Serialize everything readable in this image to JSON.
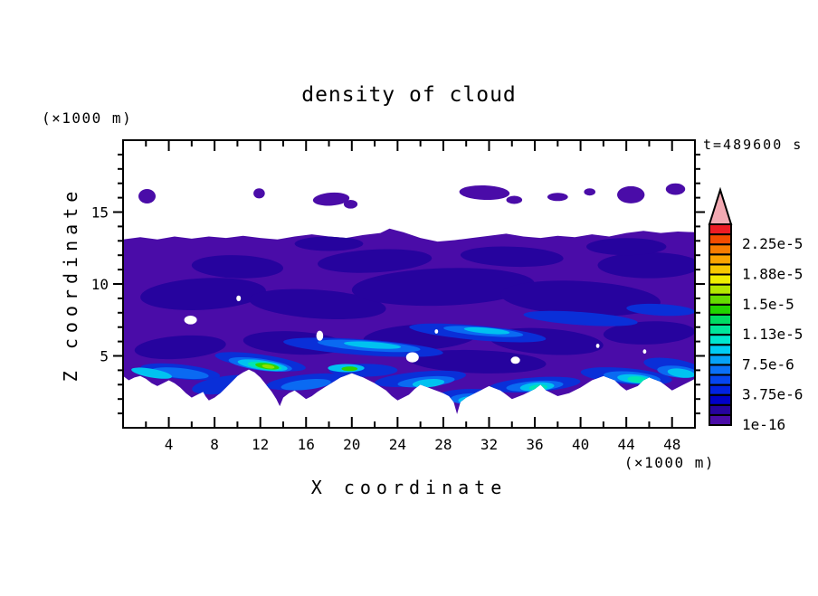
{
  "chart_data": {
    "type": "filled-contour",
    "title": "density of cloud",
    "annotation": "t=489600 s",
    "xlabel": "X coordinate",
    "ylabel": "Z coordinate",
    "x_unit": "(×1000 m)",
    "y_unit": "(×1000 m)",
    "x_range": [
      0,
      50
    ],
    "y_range": [
      0,
      20
    ],
    "x_major_ticks": [
      4,
      8,
      12,
      16,
      20,
      24,
      28,
      32,
      36,
      40,
      44,
      48
    ],
    "x_minor_tick_step": 2,
    "y_major_ticks": [
      5,
      10,
      15
    ],
    "y_minor_tick_step": 1,
    "grid": false,
    "legend_position": "colorbar-right",
    "colorbar": {
      "labels_top_to_bottom": [
        "2.25e-5",
        "1.88e-5",
        "1.5e-5",
        "1.13e-5",
        "7.5e-6",
        "3.75e-6",
        "1e-16"
      ],
      "label_every_n_cells": 3,
      "n_cells": 20,
      "colors_bottom_to_top": [
        "#4a0ca8",
        "#26039e",
        "#0000c8",
        "#0122e2",
        "#0546f0",
        "#0a70f8",
        "#06a2f8",
        "#00ccf4",
        "#00e6cf",
        "#00e69b",
        "#00dc64",
        "#22d400",
        "#66dc00",
        "#b4e800",
        "#f0ee00",
        "#f8c800",
        "#fca400",
        "#f87c00",
        "#f44c00",
        "#ee1c24"
      ],
      "overflow_triangle_color": "#f2a9b2"
    },
    "field": {
      "base_color": "#4a0ca8",
      "main_cloud_polygon": [
        [
          0,
          13.1
        ],
        [
          1.5,
          13.25
        ],
        [
          3,
          13.1
        ],
        [
          4.5,
          13.3
        ],
        [
          6,
          13.15
        ],
        [
          7.5,
          13.3
        ],
        [
          9,
          13.2
        ],
        [
          10.5,
          13.35
        ],
        [
          12,
          13.2
        ],
        [
          13.5,
          13.1
        ],
        [
          15,
          13.3
        ],
        [
          16.5,
          13.45
        ],
        [
          18,
          13.3
        ],
        [
          19.5,
          13.2
        ],
        [
          21,
          13.4
        ],
        [
          22.5,
          13.55
        ],
        [
          23.3,
          13.85
        ],
        [
          24.5,
          13.6
        ],
        [
          26,
          13.2
        ],
        [
          27.5,
          12.95
        ],
        [
          29,
          13.05
        ],
        [
          30.5,
          13.2
        ],
        [
          32,
          13.35
        ],
        [
          33.5,
          13.5
        ],
        [
          35,
          13.3
        ],
        [
          36.5,
          13.2
        ],
        [
          38,
          13.35
        ],
        [
          39.5,
          13.25
        ],
        [
          41,
          13.45
        ],
        [
          42.5,
          13.3
        ],
        [
          44,
          13.55
        ],
        [
          45.5,
          13.7
        ],
        [
          47,
          13.55
        ],
        [
          48.5,
          13.65
        ],
        [
          50,
          13.6
        ],
        [
          50,
          3.4
        ],
        [
          49,
          3.0
        ],
        [
          48,
          2.6
        ],
        [
          47,
          3.2
        ],
        [
          46,
          3.5
        ],
        [
          45.5,
          3.3
        ],
        [
          45,
          2.9
        ],
        [
          44,
          2.6
        ],
        [
          43.5,
          2.9
        ],
        [
          43,
          3.3
        ],
        [
          42,
          3.6
        ],
        [
          41,
          3.3
        ],
        [
          40,
          2.8
        ],
        [
          39,
          2.4
        ],
        [
          38,
          2.2
        ],
        [
          37,
          2.6
        ],
        [
          36.5,
          3.0
        ],
        [
          36,
          2.7
        ],
        [
          35,
          2.3
        ],
        [
          34,
          2.0
        ],
        [
          33.5,
          2.3
        ],
        [
          33,
          2.6
        ],
        [
          32,
          2.9
        ],
        [
          31,
          2.5
        ],
        [
          30,
          2.1
        ],
        [
          29.5,
          1.8
        ],
        [
          29.2,
          0.95
        ],
        [
          28.9,
          1.8
        ],
        [
          28.5,
          2.2
        ],
        [
          28,
          2.4
        ],
        [
          27,
          2.7
        ],
        [
          26,
          3.0
        ],
        [
          25.5,
          2.7
        ],
        [
          25,
          2.3
        ],
        [
          24,
          1.9
        ],
        [
          23.5,
          2.2
        ],
        [
          23,
          2.6
        ],
        [
          22,
          3.1
        ],
        [
          21,
          3.5
        ],
        [
          20,
          3.8
        ],
        [
          19,
          3.5
        ],
        [
          18,
          3.0
        ],
        [
          17,
          2.5
        ],
        [
          16.5,
          2.2
        ],
        [
          16,
          2.0
        ],
        [
          15.5,
          2.3
        ],
        [
          15,
          2.6
        ],
        [
          14.5,
          2.4
        ],
        [
          14,
          2.1
        ],
        [
          13.7,
          1.5
        ],
        [
          13.4,
          2.0
        ],
        [
          13,
          2.5
        ],
        [
          12.5,
          3.0
        ],
        [
          12,
          3.5
        ],
        [
          11.5,
          3.85
        ],
        [
          11,
          4.05
        ],
        [
          10.5,
          3.85
        ],
        [
          10,
          3.6
        ],
        [
          9.5,
          3.2
        ],
        [
          9,
          2.8
        ],
        [
          8.5,
          2.4
        ],
        [
          8,
          2.1
        ],
        [
          7.5,
          1.9
        ],
        [
          7.2,
          2.2
        ],
        [
          7,
          2.5
        ],
        [
          6.5,
          2.3
        ],
        [
          6,
          2.1
        ],
        [
          5.5,
          2.4
        ],
        [
          5,
          2.8
        ],
        [
          4.5,
          3.1
        ],
        [
          4,
          3.3
        ],
        [
          3.5,
          3.1
        ],
        [
          3,
          2.9
        ],
        [
          2.5,
          3.1
        ],
        [
          2,
          3.4
        ],
        [
          1.5,
          3.6
        ],
        [
          1,
          3.5
        ],
        [
          0.5,
          3.3
        ],
        [
          0,
          3.6
        ]
      ],
      "layers": [
        {
          "name": "density-level2-dark-patches",
          "color": "#26039e",
          "clip": true,
          "ellipses": [
            [
              7,
              9.3,
              5.5,
              1.1,
              -3
            ],
            [
              17,
              8.6,
              6,
              1,
              4
            ],
            [
              28,
              9.8,
              8,
              1.3,
              -2
            ],
            [
              40,
              9,
              7,
              1.2,
              3
            ],
            [
              46,
              11.3,
              4.5,
              0.9,
              0
            ],
            [
              10,
              11.2,
              4,
              0.8,
              2
            ],
            [
              22,
              11.6,
              5,
              0.8,
              -3
            ],
            [
              34,
              11.9,
              4.5,
              0.7,
              2
            ],
            [
              5,
              5.6,
              4,
              0.8,
              -4
            ],
            [
              15,
              5.9,
              4.5,
              0.8,
              3
            ],
            [
              26,
              6.3,
              5,
              0.9,
              -3
            ],
            [
              37,
              6,
              5,
              0.9,
              4
            ],
            [
              46,
              6.6,
              4,
              0.8,
              -2
            ],
            [
              31,
              4.6,
              6,
              0.8,
              2
            ],
            [
              44,
              12.6,
              3.5,
              0.6,
              0
            ],
            [
              18,
              12.8,
              3,
              0.5,
              0
            ]
          ]
        },
        {
          "name": "density-level3-blue-streaks",
          "color": "#0a2fd8",
          "clip": true,
          "ellipses": [
            [
              21,
              5.6,
              7,
              0.55,
              4
            ],
            [
              31,
              6.6,
              6,
              0.5,
              5
            ],
            [
              40,
              7.6,
              5,
              0.45,
              4
            ],
            [
              12,
              4.6,
              4,
              0.5,
              8
            ],
            [
              47,
              8.2,
              3,
              0.4,
              3
            ],
            [
              5,
              3.9,
              3.5,
              0.5,
              6
            ],
            [
              26,
              3.4,
              4,
              0.5,
              -5
            ],
            [
              36,
              3,
              4,
              0.5,
              -4
            ],
            [
              44,
              3.6,
              4,
              0.55,
              5
            ],
            [
              16,
              3.2,
              3.5,
              0.5,
              -6
            ],
            [
              48,
              4.3,
              2.5,
              0.5,
              8
            ],
            [
              9,
              3,
              3,
              0.6,
              -8
            ],
            [
              30.5,
              2.2,
              3,
              0.5,
              0
            ],
            [
              21,
              4,
              3,
              0.45,
              0
            ]
          ]
        },
        {
          "name": "density-level5-bright-blue",
          "color": "#0a6af2",
          "clip": true,
          "ellipses": [
            [
              21.5,
              5.7,
              4.5,
              0.35,
              4
            ],
            [
              31.5,
              6.7,
              3.5,
              0.3,
              5
            ],
            [
              12,
              4.4,
              2.8,
              0.4,
              8
            ],
            [
              5,
              3.8,
              2.5,
              0.35,
              6
            ],
            [
              26.5,
              3.2,
              2.5,
              0.35,
              -5
            ],
            [
              36,
              2.9,
              2.5,
              0.35,
              -4
            ],
            [
              44.5,
              3.5,
              2.5,
              0.4,
              5
            ],
            [
              30.8,
              2,
              2.2,
              0.4,
              0
            ],
            [
              16,
              3,
              2.2,
              0.35,
              -6
            ],
            [
              48.5,
              3.9,
              1.8,
              0.4,
              6
            ]
          ]
        },
        {
          "name": "density-level7-cyan-wisps",
          "color": "#00c2f0",
          "clip": true,
          "ellipses": [
            [
              12.2,
              4.35,
              2.2,
              0.33,
              8
            ],
            [
              2.5,
              3.8,
              1.8,
              0.3,
              10
            ],
            [
              19.5,
              4.15,
              1.6,
              0.28,
              0
            ],
            [
              30.9,
              1.9,
              1.6,
              0.33,
              0
            ],
            [
              36.2,
              2.85,
              1.5,
              0.3,
              -4
            ],
            [
              44.8,
              3.4,
              1.6,
              0.3,
              5
            ],
            [
              26.7,
              3.1,
              1.4,
              0.28,
              -5
            ],
            [
              48.8,
              3.8,
              1.2,
              0.3,
              8
            ],
            [
              21.8,
              5.75,
              2.5,
              0.22,
              4
            ],
            [
              31.8,
              6.75,
              2,
              0.2,
              5
            ]
          ]
        },
        {
          "name": "density-level9-teal",
          "color": "#00e5b4",
          "clip": true,
          "ellipses": [
            [
              12.4,
              4.3,
              1.5,
              0.26,
              8
            ],
            [
              30.9,
              1.85,
              0.9,
              0.25,
              0
            ],
            [
              45,
              3.35,
              0.9,
              0.22,
              5
            ],
            [
              36.3,
              2.8,
              0.8,
              0.2,
              -4
            ]
          ]
        },
        {
          "name": "density-level11-green",
          "color": "#2ed300",
          "clip": true,
          "ellipses": [
            [
              12.6,
              4.28,
              1.05,
              0.2,
              8
            ],
            [
              19.8,
              4.1,
              0.7,
              0.16,
              0
            ]
          ]
        },
        {
          "name": "density-level13-core",
          "color": "#8ee000",
          "clip": true,
          "ellipses": [
            [
              12.7,
              4.26,
              0.55,
              0.13,
              8
            ]
          ]
        },
        {
          "name": "clear-air-holes",
          "color": "#ffffff",
          "clip": true,
          "ellipses": [
            [
              5.9,
              7.5,
              0.55,
              0.3,
              0
            ],
            [
              10.1,
              9,
              0.2,
              0.2,
              0
            ],
            [
              17.2,
              6.4,
              0.3,
              0.35,
              0
            ],
            [
              25.3,
              4.9,
              0.55,
              0.35,
              0
            ],
            [
              34.3,
              4.7,
              0.4,
              0.25,
              0
            ],
            [
              27.4,
              6.7,
              0.15,
              0.15,
              0
            ],
            [
              41.5,
              5.7,
              0.15,
              0.15,
              0
            ],
            [
              45.6,
              5.3,
              0.15,
              0.15,
              0
            ]
          ]
        },
        {
          "name": "detached-cloud-blobs",
          "color": "#4a0ca8",
          "clip": false,
          "ellipses": [
            [
              2.1,
              16.1,
              0.75,
              0.5,
              0
            ],
            [
              11.9,
              16.3,
              0.5,
              0.35,
              0
            ],
            [
              18.2,
              15.9,
              1.6,
              0.45,
              -4
            ],
            [
              19.9,
              15.55,
              0.6,
              0.3,
              0
            ],
            [
              31.6,
              16.35,
              2.2,
              0.5,
              2
            ],
            [
              34.2,
              15.85,
              0.7,
              0.28,
              0
            ],
            [
              38,
              16.05,
              0.9,
              0.28,
              0
            ],
            [
              40.8,
              16.4,
              0.5,
              0.25,
              0
            ],
            [
              44.4,
              16.2,
              1.2,
              0.6,
              0
            ],
            [
              48.3,
              16.6,
              0.85,
              0.4,
              0
            ]
          ]
        }
      ]
    }
  }
}
